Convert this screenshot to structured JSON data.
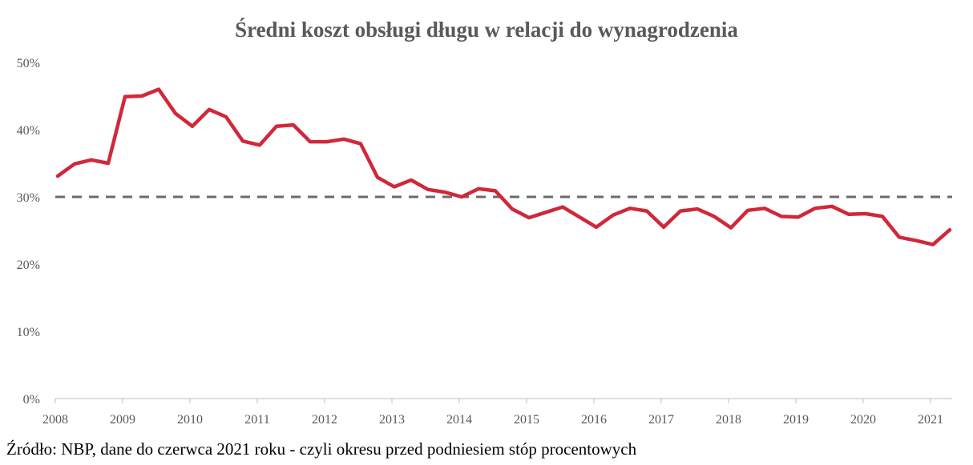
{
  "chart_data": {
    "type": "line",
    "title": "Średni koszt obsługi długu w relacji do wynagrodzenia",
    "xlabel": "",
    "ylabel": "",
    "ylim": [
      0,
      50
    ],
    "yticks": [
      "0%",
      "10%",
      "20%",
      "30%",
      "40%",
      "50%"
    ],
    "xticks": [
      "2008",
      "2009",
      "2010",
      "2011",
      "2012",
      "2013",
      "2014",
      "2015",
      "2016",
      "2017",
      "2018",
      "2019",
      "2020",
      "2021"
    ],
    "grid": false,
    "series": [
      {
        "name": "Średni koszt obsługi długu",
        "color": "#d0283a",
        "frequency": "quarterly",
        "start": "2008Q1",
        "values": [
          33.1,
          34.9,
          35.5,
          35.0,
          44.9,
          45.0,
          46.0,
          42.4,
          40.5,
          43.0,
          41.9,
          38.3,
          37.7,
          40.5,
          40.7,
          38.2,
          38.2,
          38.6,
          37.9,
          32.9,
          31.5,
          32.5,
          31.1,
          30.7,
          30.0,
          31.2,
          30.9,
          28.2,
          26.9,
          27.7,
          28.5,
          27.0,
          25.5,
          27.3,
          28.3,
          27.9,
          25.5,
          27.9,
          28.2,
          27.1,
          25.4,
          28.0,
          28.3,
          27.1,
          27.0,
          28.3,
          28.6,
          27.4,
          27.5,
          27.1,
          24.0,
          23.5,
          22.9,
          25.1
        ]
      }
    ],
    "reference_line": {
      "value": 30,
      "style": "dashed",
      "color": "#6b6b6b"
    }
  },
  "source": "Źródło: NBP, dane do czerwca 2021 roku - czyli okresu przed podniesiem stóp procentowych"
}
